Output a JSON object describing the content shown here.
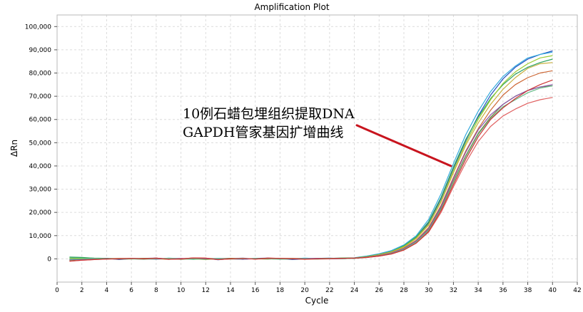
{
  "chart_data": {
    "type": "line",
    "title": "Amplification Plot",
    "xlabel": "Cycle",
    "ylabel": "ΔRn",
    "xlim": [
      0,
      42
    ],
    "ylim": [
      -10000,
      105000
    ],
    "x_ticks": [
      0,
      2,
      4,
      6,
      8,
      10,
      12,
      14,
      16,
      18,
      20,
      22,
      24,
      26,
      28,
      30,
      32,
      34,
      36,
      38,
      40,
      42
    ],
    "y_ticks": [
      0,
      10000,
      20000,
      30000,
      40000,
      50000,
      60000,
      70000,
      80000,
      90000,
      100000
    ],
    "y_tick_labels": [
      "0",
      "10,000",
      "20,000",
      "30,000",
      "40,000",
      "50,000",
      "60,000",
      "70,000",
      "80,000",
      "90,000",
      "100,000"
    ],
    "grid": true,
    "annotation": {
      "lines": [
        "10例石蜡包埋组织提取DNA",
        "GAPDH管家基因扩增曲线"
      ],
      "arrow_from": [
        24.2,
        57500
      ],
      "arrow_to": [
        31.8,
        40000
      ]
    },
    "x": [
      1,
      2,
      3,
      4,
      5,
      6,
      7,
      8,
      9,
      10,
      11,
      12,
      13,
      14,
      15,
      16,
      17,
      18,
      19,
      20,
      21,
      22,
      23,
      24,
      25,
      26,
      27,
      28,
      29,
      30,
      31,
      32,
      33,
      34,
      35,
      36,
      37,
      38,
      39,
      40
    ],
    "series": [
      {
        "color": "#1f4fbf",
        "values": [
          -200,
          100,
          -100,
          200,
          -300,
          100,
          200,
          300,
          -100,
          0,
          300,
          200,
          -400,
          100,
          -200,
          200,
          300,
          100,
          -300,
          0,
          200,
          300,
          100,
          200,
          900,
          1800,
          3100,
          5500,
          9300,
          15500,
          26000,
          39000,
          51000,
          61500,
          70500,
          77500,
          82500,
          86000,
          88000,
          89500
        ]
      },
      {
        "color": "#33aadd",
        "values": [
          400,
          500,
          100,
          -100,
          200,
          0,
          100,
          -200,
          300,
          100,
          -100,
          0,
          200,
          100,
          300,
          -100,
          200,
          100,
          0,
          300,
          100,
          200,
          400,
          500,
          1200,
          2200,
          3600,
          6000,
          10000,
          17000,
          28000,
          41000,
          53500,
          63500,
          72000,
          78500,
          83000,
          86500,
          88000,
          89000
        ]
      },
      {
        "color": "#2ca25f",
        "values": [
          800,
          600,
          300,
          200,
          100,
          0,
          -100,
          200,
          0,
          100,
          -200,
          100,
          0,
          200,
          -100,
          100,
          200,
          0,
          100,
          -100,
          200,
          100,
          300,
          400,
          1000,
          1900,
          3200,
          5600,
          9500,
          16000,
          26500,
          39500,
          51500,
          61000,
          69000,
          75000,
          79500,
          82500,
          84500,
          86000
        ]
      },
      {
        "color": "#99cc33",
        "values": [
          300,
          200,
          100,
          0,
          -100,
          100,
          200,
          0,
          -200,
          100,
          0,
          -300,
          100,
          200,
          0,
          100,
          -100,
          200,
          100,
          0,
          100,
          200,
          300,
          300,
          900,
          1800,
          3000,
          5300,
          9000,
          15000,
          25000,
          38000,
          50000,
          60000,
          68500,
          75500,
          80500,
          84000,
          86500,
          87500
        ]
      },
      {
        "color": "#c8b040",
        "values": [
          -300,
          -100,
          100,
          0,
          200,
          100,
          0,
          -100,
          200,
          0,
          100,
          200,
          0,
          -100,
          100,
          0,
          200,
          100,
          -100,
          100,
          0,
          100,
          200,
          300,
          800,
          1700,
          2900,
          5000,
          8700,
          14500,
          24500,
          37000,
          49000,
          58500,
          66500,
          73000,
          78000,
          82000,
          84000,
          84500
        ]
      },
      {
        "color": "#cc6633",
        "values": [
          -500,
          -300,
          0,
          100,
          -100,
          0,
          100,
          200,
          -100,
          0,
          200,
          100,
          -200,
          0,
          100,
          -100,
          0,
          200,
          100,
          -200,
          0,
          100,
          200,
          200,
          700,
          1500,
          2600,
          4600,
          8000,
          13500,
          23000,
          35000,
          46500,
          56000,
          64000,
          70500,
          75000,
          78000,
          80000,
          81000
        ]
      },
      {
        "color": "#7a7a3a",
        "values": [
          -600,
          -200,
          -100,
          100,
          0,
          -100,
          200,
          100,
          0,
          -200,
          100,
          0,
          -100,
          200,
          0,
          100,
          -100,
          0,
          200,
          100,
          -100,
          0,
          100,
          200,
          600,
          1400,
          2400,
          4300,
          7600,
          12800,
          22000,
          33500,
          44500,
          54000,
          61000,
          66500,
          70000,
          72500,
          74000,
          74500
        ]
      },
      {
        "color": "#8855aa",
        "values": [
          -400,
          -200,
          100,
          0,
          -100,
          200,
          0,
          -100,
          100,
          200,
          0,
          -100,
          100,
          0,
          -200,
          100,
          200,
          0,
          -100,
          100,
          200,
          0,
          100,
          300,
          700,
          1400,
          2500,
          4400,
          7700,
          13000,
          22500,
          34500,
          46000,
          55500,
          62000,
          66500,
          70000,
          72500,
          74000,
          75000
        ]
      },
      {
        "color": "#66bb88",
        "values": [
          -200,
          0,
          200,
          -100,
          100,
          0,
          -200,
          100,
          200,
          0,
          -100,
          200,
          100,
          -100,
          0,
          200,
          100,
          -200,
          0,
          100,
          -100,
          200,
          100,
          200,
          600,
          1300,
          2300,
          4100,
          7300,
          12300,
          21500,
          33000,
          44000,
          53500,
          60500,
          65500,
          68500,
          71500,
          73500,
          74500
        ]
      },
      {
        "color": "#e06060",
        "values": [
          -1000,
          -600,
          -300,
          -100,
          100,
          200,
          0,
          300,
          -200,
          0,
          400,
          300,
          -300,
          0,
          200,
          -100,
          300,
          200,
          100,
          -100,
          0,
          100,
          200,
          300,
          600,
          1200,
          2100,
          3800,
          6800,
          11500,
          20000,
          31000,
          41500,
          50500,
          57000,
          61500,
          64500,
          67000,
          68500,
          69500
        ]
      },
      {
        "color": "#cc3333",
        "values": [
          -1000,
          -600,
          -300,
          -100,
          100,
          200,
          0,
          300,
          -200,
          0,
          400,
          300,
          -300,
          0,
          200,
          -100,
          300,
          200,
          100,
          -100,
          0,
          100,
          200,
          300,
          600,
          1200,
          2100,
          3800,
          6800,
          11800,
          20800,
          32000,
          43000,
          52500,
          60000,
          65000,
          69000,
          72500,
          75000,
          77000
        ]
      }
    ]
  }
}
